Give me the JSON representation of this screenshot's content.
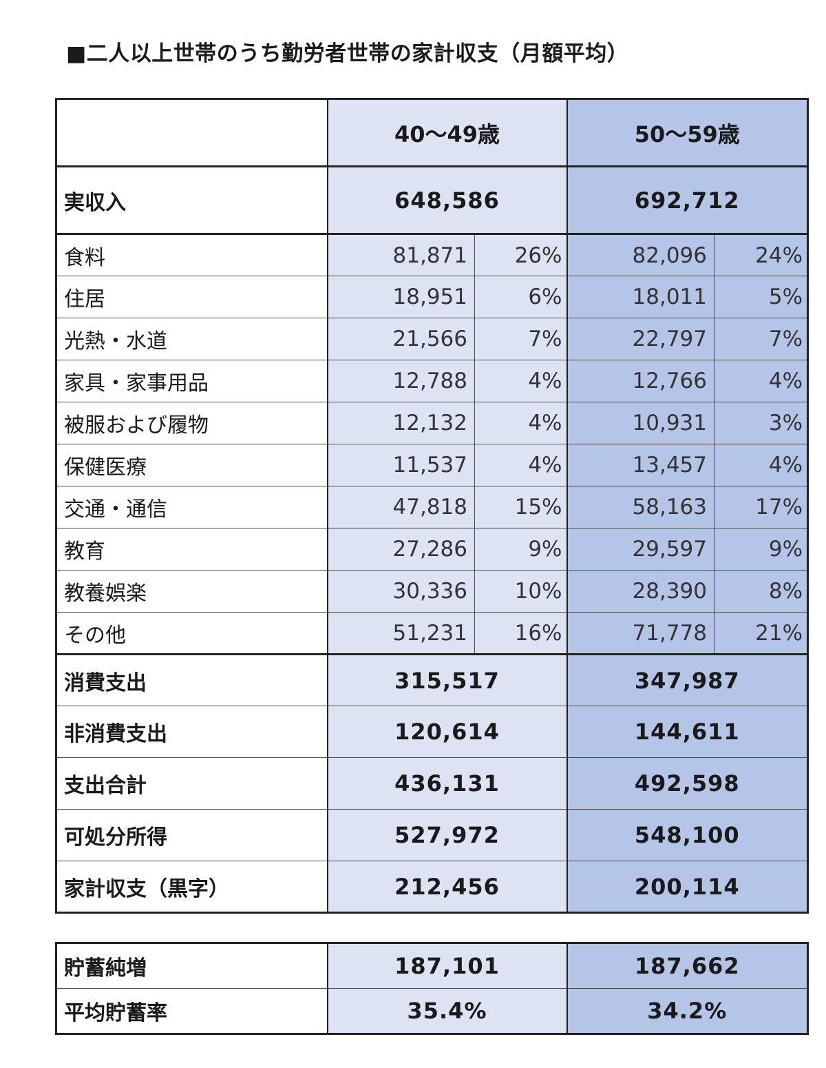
{
  "title": "■二人以上世帯のうち勤労者世帯の家計収支（月額平均）",
  "headers": {
    "age1": "40～49歳",
    "age2": "50～59歳"
  },
  "income": {
    "label": "実収入",
    "v1": "648,586",
    "v2": "692,712"
  },
  "items": [
    {
      "label": "食料",
      "v1": "81,871",
      "p1": "26%",
      "v2": "82,096",
      "p2": "24%"
    },
    {
      "label": "住居",
      "v1": "18,951",
      "p1": "6%",
      "v2": "18,011",
      "p2": "5%"
    },
    {
      "label": "光熱・水道",
      "v1": "21,566",
      "p1": "7%",
      "v2": "22,797",
      "p2": "7%"
    },
    {
      "label": "家具・家事用品",
      "v1": "12,788",
      "p1": "4%",
      "v2": "12,766",
      "p2": "4%"
    },
    {
      "label": "被服および履物",
      "v1": "12,132",
      "p1": "4%",
      "v2": "10,931",
      "p2": "3%"
    },
    {
      "label": "保健医療",
      "v1": "11,537",
      "p1": "4%",
      "v2": "13,457",
      "p2": "4%"
    },
    {
      "label": "交通・通信",
      "v1": "47,818",
      "p1": "15%",
      "v2": "58,163",
      "p2": "17%"
    },
    {
      "label": "教育",
      "v1": "27,286",
      "p1": "9%",
      "v2": "29,597",
      "p2": "9%"
    },
    {
      "label": "教養娯楽",
      "v1": "30,336",
      "p1": "10%",
      "v2": "28,390",
      "p2": "8%"
    },
    {
      "label": "その他",
      "v1": "51,231",
      "p1": "16%",
      "v2": "71,778",
      "p2": "21%"
    }
  ],
  "totals": [
    {
      "label": "消費支出",
      "v1": "315,517",
      "v2": "347,987"
    },
    {
      "label": "非消費支出",
      "v1": "120,614",
      "v2": "144,611"
    },
    {
      "label": "支出合計",
      "v1": "436,131",
      "v2": "492,598"
    },
    {
      "label": "可処分所得",
      "v1": "527,972",
      "v2": "548,100"
    },
    {
      "label": "家計収支（黒字）",
      "v1": "212,456",
      "v2": "200,114"
    }
  ],
  "savings": [
    {
      "label": "貯蓄純増",
      "v1": "187,101",
      "v2": "187,662"
    },
    {
      "label": "平均貯蓄率",
      "v1": "35.4%",
      "v2": "34.2%"
    }
  ]
}
